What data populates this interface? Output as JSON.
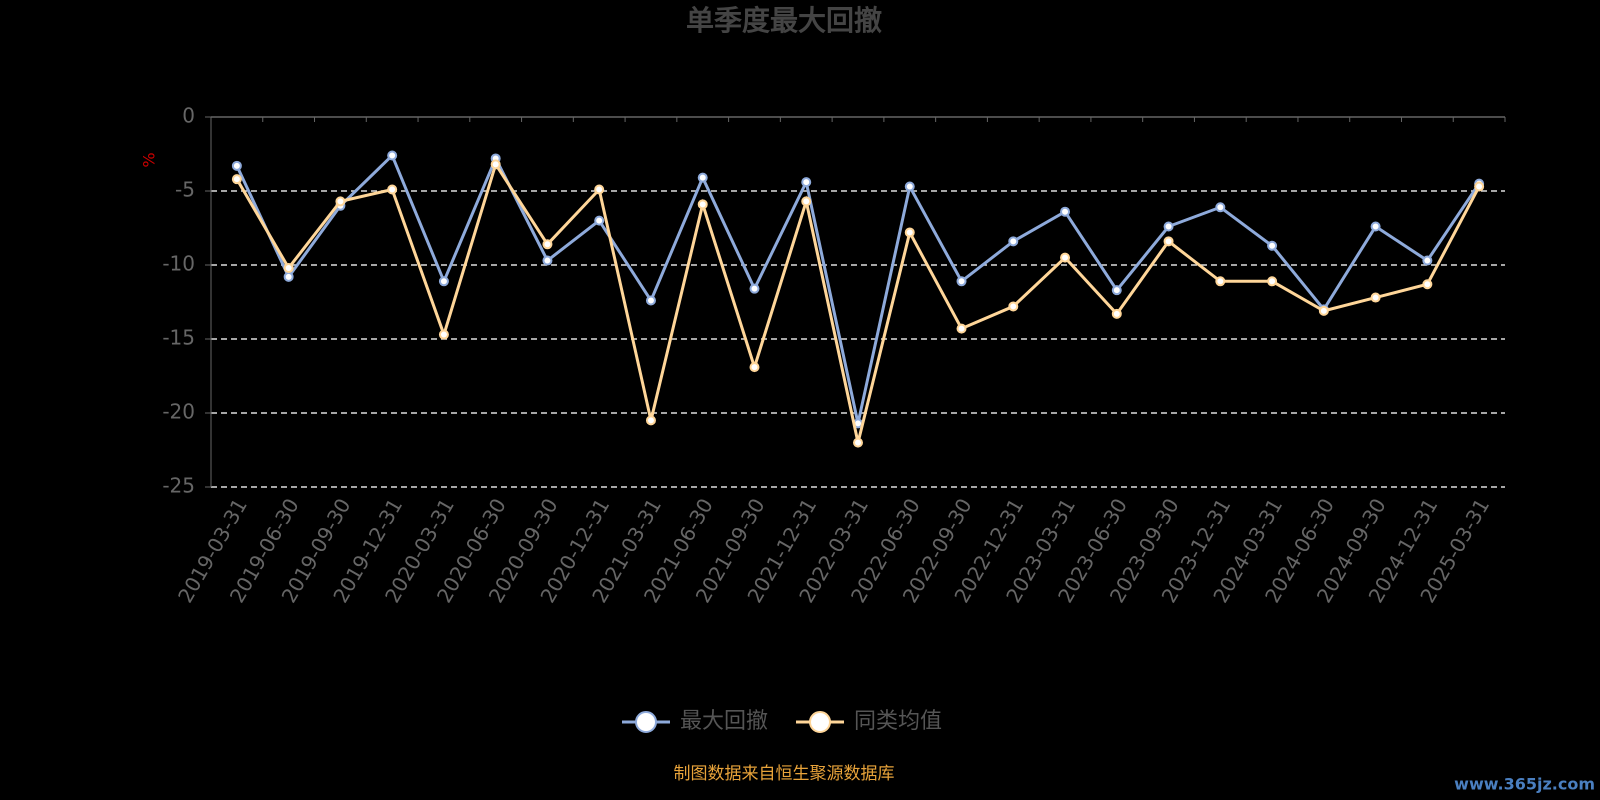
{
  "chart_data": {
    "type": "line",
    "title": "单季度最大回撤",
    "y_label": "%",
    "categories": [
      "2019-03-31",
      "2019-06-30",
      "2019-09-30",
      "2019-12-31",
      "2020-03-31",
      "2020-06-30",
      "2020-09-30",
      "2020-12-31",
      "2021-03-31",
      "2021-06-30",
      "2021-09-30",
      "2021-12-31",
      "2022-03-31",
      "2022-06-30",
      "2022-09-30",
      "2022-12-31",
      "2023-03-31",
      "2023-06-30",
      "2023-09-30",
      "2023-12-31",
      "2024-03-31",
      "2024-06-30",
      "2024-09-30",
      "2024-12-31",
      "2025-03-31"
    ],
    "series": [
      {
        "name": "最大回撤",
        "color": "#8eaadb",
        "values": [
          -3.3,
          -10.8,
          -6.0,
          -2.6,
          -11.1,
          -2.8,
          -9.7,
          -7.0,
          -12.4,
          -4.1,
          -11.6,
          -4.4,
          -20.7,
          -4.7,
          -11.1,
          -8.4,
          -6.4,
          -11.7,
          -7.4,
          -6.1,
          -8.7,
          -13.0,
          -7.4,
          -9.7,
          -4.5
        ]
      },
      {
        "name": "同类均值",
        "color": "#ffd699",
        "values": [
          -4.2,
          -10.2,
          -5.7,
          -4.9,
          -14.7,
          -3.2,
          -8.6,
          -4.9,
          -20.5,
          -5.9,
          -16.9,
          -5.7,
          -22.0,
          -7.8,
          -14.3,
          -12.8,
          -9.5,
          -13.3,
          -8.4,
          -11.1,
          -11.1,
          -13.1,
          -12.2,
          -11.3,
          -4.7
        ]
      }
    ],
    "ylim": [
      -25,
      0
    ],
    "yticks": [
      0,
      -5,
      -10,
      -15,
      -20,
      -25
    ],
    "grid": true,
    "footer": "制图数据来自恒生聚源数据库",
    "watermark": "www.365jz.com"
  }
}
